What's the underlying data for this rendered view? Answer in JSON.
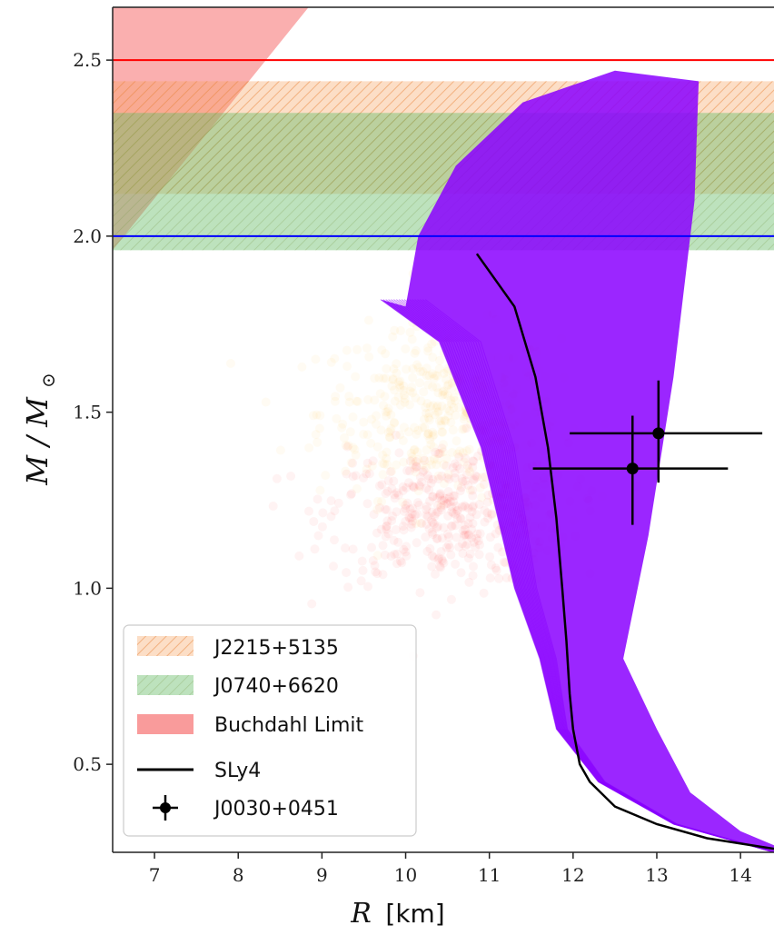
{
  "chart_data": {
    "type": "scatter",
    "xlabel_symbol": "R",
    "xlabel_unit": "[km]",
    "ylabel": "M / M",
    "ylabel_sub": "⊙",
    "xlim": [
      6.5,
      14.4
    ],
    "ylim": [
      0.25,
      2.65
    ],
    "xticks": [
      7,
      8,
      9,
      10,
      11,
      12,
      13,
      14
    ],
    "yticks": [
      0.5,
      1.0,
      1.5,
      2.0,
      2.5
    ],
    "ytick_labels": [
      "0.5",
      "1.0",
      "1.5",
      "2.0",
      "2.5"
    ],
    "grid": false,
    "legend_position": "lower-left",
    "colors": {
      "j2215": "#f5a05a",
      "j0740": "#6cc06c",
      "buchdahl": "#f77a7a",
      "purple": "#8a00ff",
      "orange_points": "#ffb52e",
      "red_points": "#ff2b2b",
      "line_red": "#ff0000",
      "line_blue": "#0000ff",
      "black": "#000000"
    },
    "horizontal_lines": [
      {
        "y": 2.5,
        "color": "#ff0000"
      },
      {
        "y": 2.0,
        "color": "#0000ff"
      }
    ],
    "bands": [
      {
        "name": "J2215+5135",
        "ymin": 2.12,
        "ymax": 2.44,
        "hatched": true
      },
      {
        "name": "J0740+6620",
        "ymin": 1.96,
        "ymax": 2.35,
        "hatched": true
      }
    ],
    "buchdahl_limit": {
      "name": "Buchdahl Limit",
      "boundary": [
        [
          6.5,
          1.96
        ],
        [
          8.84,
          2.65
        ]
      ]
    },
    "purple_envelope": {
      "upper_tracks": [
        [
          9.7,
          1.82
        ],
        [
          10.0,
          1.8
        ],
        [
          10.15,
          2.0
        ],
        [
          10.6,
          2.2
        ],
        [
          11.4,
          2.38
        ],
        [
          12.5,
          2.47
        ],
        [
          13.5,
          2.44
        ],
        [
          13.45,
          2.1
        ],
        [
          13.2,
          1.6
        ],
        [
          12.9,
          1.15
        ],
        [
          12.6,
          0.8
        ],
        [
          13.0,
          0.6
        ],
        [
          13.4,
          0.42
        ],
        [
          14.0,
          0.31
        ],
        [
          14.4,
          0.27
        ]
      ],
      "lower_tracks": [
        [
          9.7,
          1.82
        ],
        [
          10.4,
          1.7
        ],
        [
          10.9,
          1.4
        ],
        [
          11.3,
          1.0
        ],
        [
          11.6,
          0.8
        ],
        [
          11.8,
          0.6
        ],
        [
          12.3,
          0.45
        ],
        [
          13.2,
          0.33
        ],
        [
          14.4,
          0.25
        ]
      ]
    },
    "series": [
      {
        "name": "SLy4",
        "type": "line",
        "x": [
          10.85,
          11.3,
          11.55,
          11.7,
          11.8,
          11.87,
          11.92,
          11.96,
          12.0,
          12.08,
          12.2,
          12.5,
          13.0,
          13.6,
          14.4
        ],
        "y": [
          1.95,
          1.8,
          1.6,
          1.4,
          1.2,
          1.0,
          0.85,
          0.7,
          0.6,
          0.5,
          0.45,
          0.38,
          0.33,
          0.29,
          0.26
        ]
      }
    ],
    "errorbars": [
      {
        "name": "J0030+0451",
        "x": 12.71,
        "y": 1.34,
        "xerr": [
          1.19,
          1.14
        ],
        "yerr": [
          0.16,
          0.15
        ]
      },
      {
        "name": "J0030+0451",
        "x": 13.02,
        "y": 1.44,
        "xerr": [
          1.06,
          1.24
        ],
        "yerr": [
          0.14,
          0.15
        ]
      }
    ],
    "clouds": [
      {
        "name": "orange",
        "center": [
          10.4,
          1.5
        ],
        "spread": [
          1.3,
          0.12
        ]
      },
      {
        "name": "red",
        "center": [
          10.5,
          1.21
        ],
        "spread": [
          1.3,
          0.1
        ]
      }
    ],
    "legend": [
      {
        "label": "J2215+5135",
        "kind": "hatch-orange"
      },
      {
        "label": "J0740+6620",
        "kind": "hatch-green"
      },
      {
        "label": "Buchdahl Limit",
        "kind": "fill-red"
      },
      {
        "label": "SLy4",
        "kind": "line"
      },
      {
        "label": "J0030+0451",
        "kind": "errorbar"
      }
    ]
  }
}
